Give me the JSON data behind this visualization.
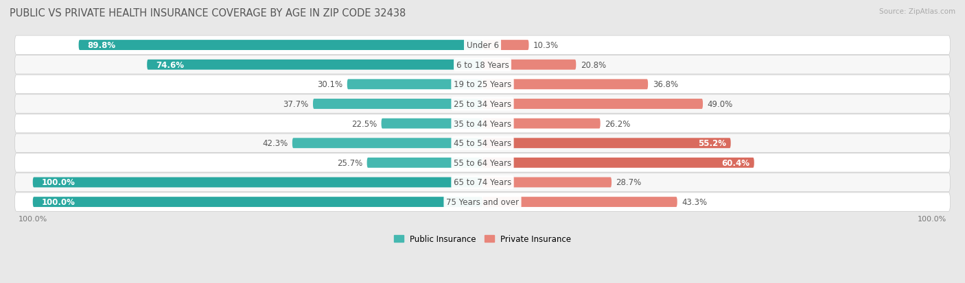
{
  "title": "PUBLIC VS PRIVATE HEALTH INSURANCE COVERAGE BY AGE IN ZIP CODE 32438",
  "source": "Source: ZipAtlas.com",
  "categories": [
    "Under 6",
    "6 to 18 Years",
    "19 to 25 Years",
    "25 to 34 Years",
    "35 to 44 Years",
    "45 to 54 Years",
    "55 to 64 Years",
    "65 to 74 Years",
    "75 Years and over"
  ],
  "public": [
    89.8,
    74.6,
    30.1,
    37.7,
    22.5,
    42.3,
    25.7,
    100.0,
    100.0
  ],
  "private": [
    10.3,
    20.8,
    36.8,
    49.0,
    26.2,
    55.2,
    60.4,
    28.7,
    43.3
  ],
  "public_color": "#45b8b0",
  "private_color": "#e8857a",
  "public_color_bold": "#2aa8a0",
  "private_color_bold": "#d96b5e",
  "public_label": "Public Insurance",
  "private_label": "Private Insurance",
  "background_color": "#e8e8e8",
  "row_color_odd": "#f7f7f7",
  "row_color_even": "#ffffff",
  "title_fontsize": 10.5,
  "label_fontsize": 8.5,
  "value_fontsize": 8.5,
  "bar_height": 0.52,
  "figsize": [
    14.06,
    4.14
  ],
  "dpi": 100,
  "bold_threshold_pub": 50,
  "bold_threshold_priv": 50
}
